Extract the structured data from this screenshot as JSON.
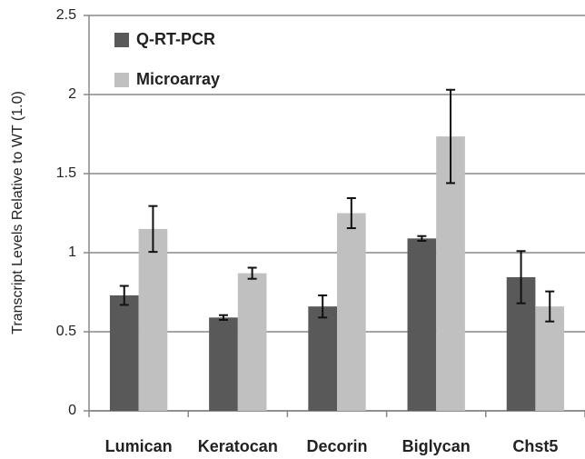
{
  "chart_data": {
    "type": "bar",
    "ylabel": "Transcript Levels Relative to WT (1.0)",
    "categories": [
      "Lumican",
      "Keratocan",
      "Decorin",
      "Biglycan",
      "Chst5"
    ],
    "series": [
      {
        "name": "Q-RT-PCR",
        "color": "#595959",
        "values": [
          0.73,
          0.59,
          0.66,
          1.09,
          0.845
        ],
        "errors": [
          0.06,
          0.015,
          0.07,
          0.015,
          0.165
        ]
      },
      {
        "name": "Microarray",
        "color": "#c0c0c0",
        "values": [
          1.15,
          0.87,
          1.25,
          1.735,
          0.66
        ],
        "errors": [
          0.145,
          0.035,
          0.095,
          0.295,
          0.095
        ]
      }
    ],
    "ylim": [
      0,
      2.5
    ],
    "yticks": [
      0,
      0.5,
      1,
      1.5,
      2,
      2.5
    ],
    "grid": true,
    "legend": "top-left"
  }
}
